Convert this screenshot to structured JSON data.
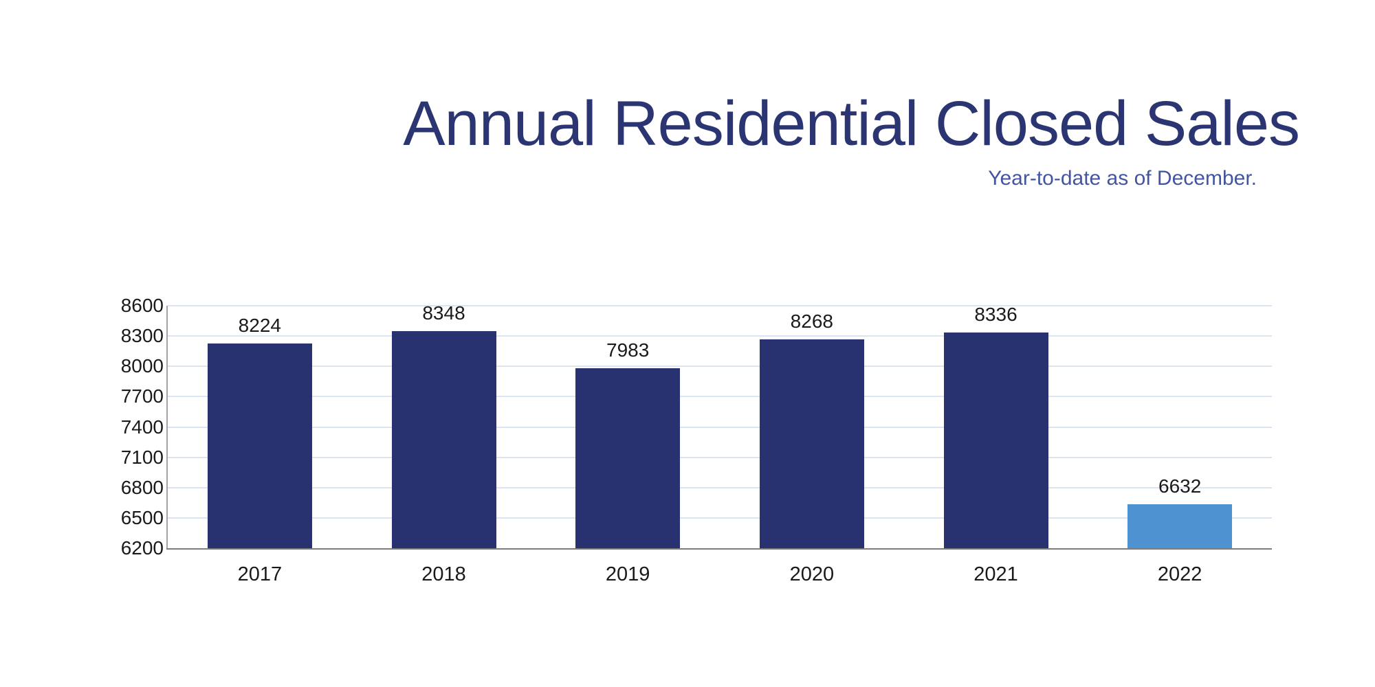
{
  "title": "Annual Residential Closed Sales",
  "subtitle": "Year-to-date as of December.",
  "chart_data": {
    "type": "bar",
    "title": "Annual Residential Closed Sales",
    "subtitle": "Year-to-date as of December.",
    "categories": [
      "2017",
      "2018",
      "2019",
      "2020",
      "2021",
      "2022"
    ],
    "values": [
      8224,
      8348,
      7983,
      8268,
      8336,
      6632
    ],
    "data_labels": [
      8224,
      8348,
      7983,
      8268,
      8336,
      6632
    ],
    "xlabel": "",
    "ylabel": "",
    "ylim": [
      6200,
      8600
    ],
    "ytick_step": 300,
    "yticks": [
      8600,
      8300,
      8000,
      7700,
      7400,
      7100,
      6800,
      6500,
      6200
    ],
    "grid": "horizontal",
    "legend": "none",
    "bar_colors": [
      "#283271",
      "#283271",
      "#283271",
      "#283271",
      "#283271",
      "#4e92d2"
    ]
  },
  "colors": {
    "bar_primary": "#283271",
    "bar_highlight": "#4e92d2",
    "gridline": "#dce4f0",
    "axis_y": "#a3a3a3",
    "axis_x": "#7d7d7d",
    "title": "#2b3572",
    "subtitle": "#4355a0",
    "text": "#1a1a1a"
  }
}
